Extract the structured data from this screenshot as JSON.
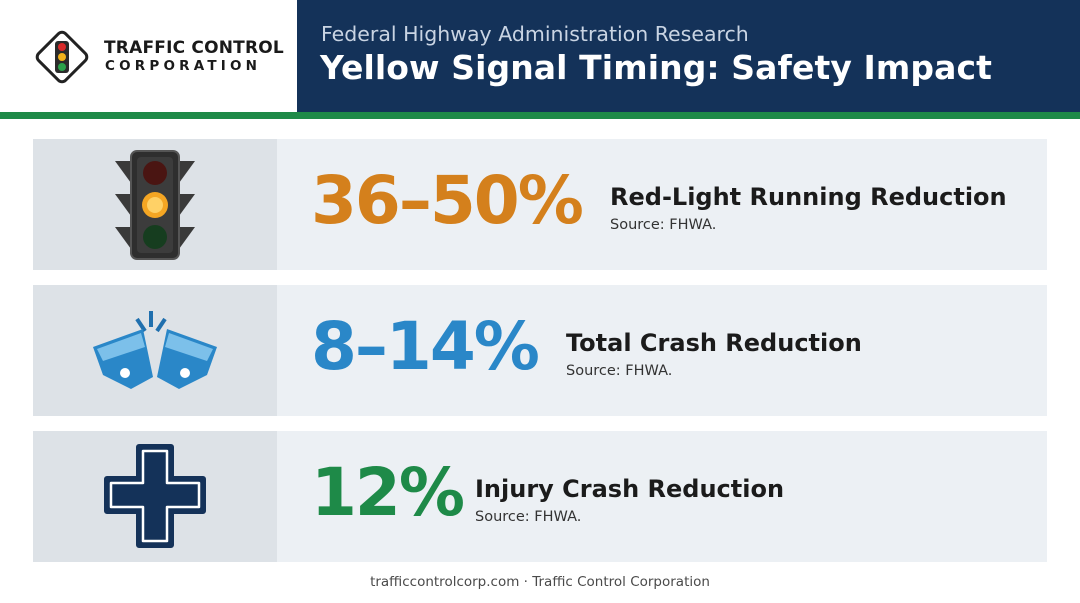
{
  "brand": {
    "name_line1": "TRAFFIC CONTROL",
    "name_line2": "CORPORATION",
    "logo_icon": "traffic-light-diamond-icon"
  },
  "header": {
    "kicker": "Federal Highway Administration Research",
    "title": "Yellow Signal Timing: Safety Impact"
  },
  "stats": [
    {
      "value": "36–50%",
      "label": "Red-Light Running Reduction",
      "source": "Source: FHWA.",
      "icon": "traffic-light-icon",
      "color": "#d4801c"
    },
    {
      "value": "8–14%",
      "label": "Total Crash Reduction",
      "source": "Source: FHWA.",
      "icon": "car-collision-icon",
      "color": "#2a87c8"
    },
    {
      "value": "12%",
      "label": "Injury Crash Reduction",
      "source": "Source: FHWA.",
      "icon": "medical-cross-icon",
      "color": "#1e8a48"
    }
  ],
  "footer": {
    "text": "trafficcontrolcorp.com · Traffic Control Corporation"
  },
  "colors": {
    "navy": "#143259",
    "green": "#1e8a48",
    "card_bg": "#ecf0f4",
    "icon_bg": "#dde2e7"
  }
}
